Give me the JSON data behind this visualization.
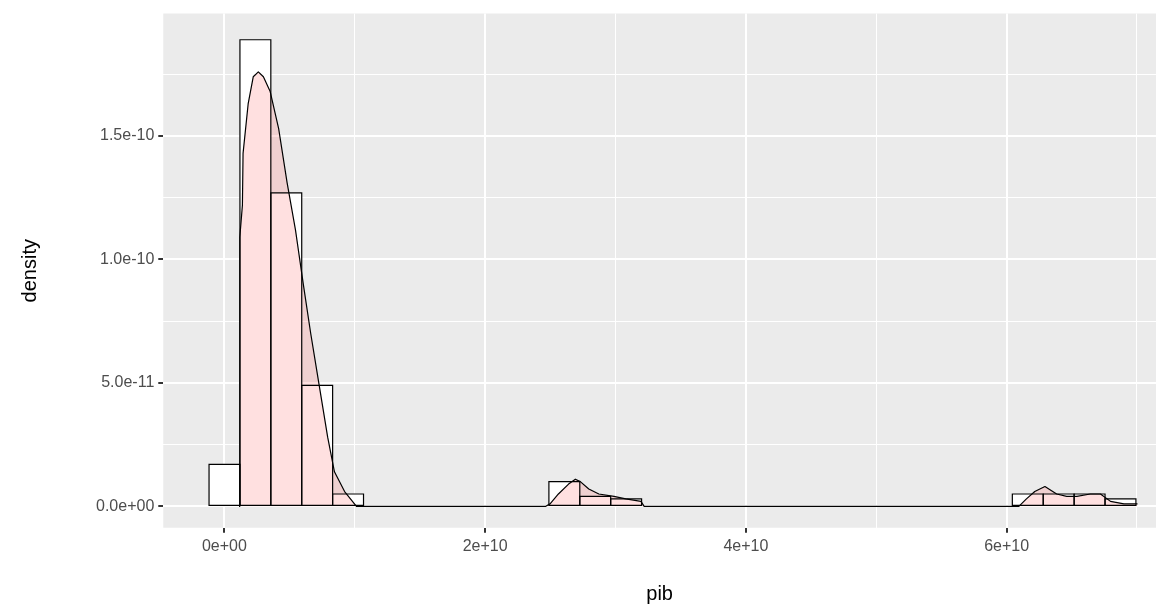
{
  "chart_data": {
    "type": "histogram",
    "xlabel": "pib",
    "ylabel": "density",
    "bins": [
      -1180000000.0,
      1190000000.0,
      3560000000.0,
      5930000000.0,
      8300000000.0,
      10670000000.0,
      13040000000.0,
      15410000000.0,
      17780000000.0,
      20150000000.0,
      22520000000.0,
      24890000000.0,
      27260000000.0,
      29630000000.0,
      32000000000.0,
      34370000000.0,
      36740000000.0,
      39110000000.0,
      41480000000.0,
      43850000000.0,
      46220000000.0,
      48590000000.0,
      50960000000.0,
      53330000000.0,
      55700000000.0,
      58070000000.0,
      60440000000.0,
      62810000000.0,
      65180000000.0,
      67550000000.0,
      69920000000.0
    ],
    "values": [
      1.7e-11,
      1.89e-10,
      1.27e-10,
      4.9e-11,
      5e-12,
      0,
      0,
      0,
      0,
      0,
      0,
      1e-11,
      4e-12,
      3e-12,
      0,
      0,
      0,
      0,
      0,
      0,
      0,
      0,
      0,
      0,
      0,
      0,
      5e-12,
      5e-12,
      5e-12,
      3e-12
    ],
    "color": "#ffffff",
    "series": [
      {
        "type": "area",
        "color": "#ff6666",
        "x": [
          1120000000.0,
          1180000000.0,
          1380000000.0,
          1430000000.0,
          1820000000.0,
          2210000000.0,
          2600000000.0,
          2990000000.0,
          3510000000.0,
          4160000000.0,
          4810000000.0,
          5450000000.0,
          6050000000.0,
          6620000000.0,
          7270000000.0,
          7920000000.0,
          8440000000.0,
          9220000000.0,
          10130000000.0,
          24650000000.0,
          24980000000.0,
          25620000000.0,
          26400000000.0,
          26920000000.0,
          27300000000.0,
          27950000000.0,
          28720000000.0,
          29880000000.0,
          30790000000.0,
          31950000000.0,
          32200000000.0,
          60940000000.0,
          61520000000.0,
          62160000000.0,
          62940000000.0,
          63840000000.0,
          64610000000.0,
          65390000000.0,
          66420000000.0,
          67200000000.0,
          67970000000.0,
          69000000000.0,
          70040000000.0
        ],
        "values": [
          0,
          1.09e-10,
          1.22e-10,
          1.43e-10,
          1.63e-10,
          1.74e-10,
          1.76e-10,
          1.74e-10,
          1.68e-10,
          1.53e-10,
          1.31e-10,
          1.12e-10,
          9e-11,
          7e-11,
          4.9e-11,
          2.8e-11,
          1.4e-11,
          6e-12,
          0,
          0,
          1e-12,
          5e-12,
          9e-12,
          1.1e-11,
          1e-11,
          7e-12,
          5e-12,
          4e-12,
          3e-12,
          2e-12,
          0,
          0,
          3e-12,
          6e-12,
          8e-12,
          5e-12,
          4e-12,
          4e-12,
          5e-12,
          5e-12,
          2e-12,
          1e-12,
          1e-12
        ]
      }
    ],
    "xlim": [
      -4690000000.0,
      71460000000.0
    ],
    "xticks": [
      {
        "value": 0,
        "label": "0e+00"
      },
      {
        "value": 10000000000.0,
        "label": null
      },
      {
        "value": 20000000000.0,
        "label": "2e+10"
      },
      {
        "value": 30000000000.0,
        "label": null
      },
      {
        "value": 40000000000.0,
        "label": "4e+10"
      },
      {
        "value": 50000000000.0,
        "label": null
      },
      {
        "value": 60000000000.0,
        "label": "6e+10"
      },
      {
        "value": 70000000000.0,
        "label": null
      }
    ],
    "ylim": [
      -8.7e-12,
      1.996e-10
    ],
    "yticks": [
      {
        "value": 0,
        "label": "0.0e+00"
      },
      {
        "value": 2.5e-11,
        "label": null
      },
      {
        "value": 5e-11,
        "label": "5.0e-11"
      },
      {
        "value": 7.5e-11,
        "label": null
      },
      {
        "value": 1e-10,
        "label": "1.0e-10"
      },
      {
        "value": 1.25e-10,
        "label": null
      },
      {
        "value": 1.5e-10,
        "label": "1.5e-10"
      },
      {
        "value": 1.75e-10,
        "label": null
      }
    ],
    "grid": true,
    "legend": false
  }
}
